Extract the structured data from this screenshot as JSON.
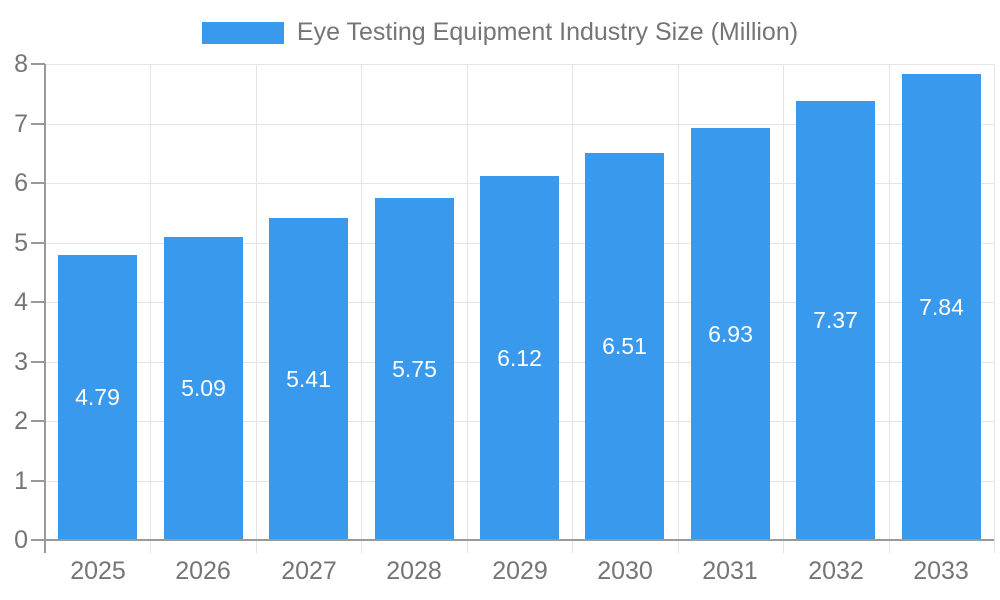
{
  "chart_data": {
    "type": "bar",
    "title": "Eye Testing Equipment Industry Size (Million)",
    "categories": [
      "2025",
      "2026",
      "2027",
      "2028",
      "2029",
      "2030",
      "2031",
      "2032",
      "2033"
    ],
    "values": [
      4.79,
      5.09,
      5.41,
      5.75,
      6.12,
      6.51,
      6.93,
      7.37,
      7.84
    ],
    "xlabel": "",
    "ylabel": "",
    "ylim": [
      0,
      8
    ],
    "ytick_interval": 1,
    "ytick_labels": [
      "0",
      "1",
      "2",
      "3",
      "4",
      "5",
      "6",
      "7",
      "8"
    ],
    "grid": true,
    "legend_position": "top-center",
    "value_labels_position": "inside-center",
    "colors": {
      "bar": "#3999EC",
      "bar_value_label": "#FFFFFF",
      "axis_line": "#999999",
      "grid_line": "#E4E4E4",
      "tick_label": "#757575",
      "legend_text": "#757575",
      "background": "#FFFFFF"
    }
  }
}
